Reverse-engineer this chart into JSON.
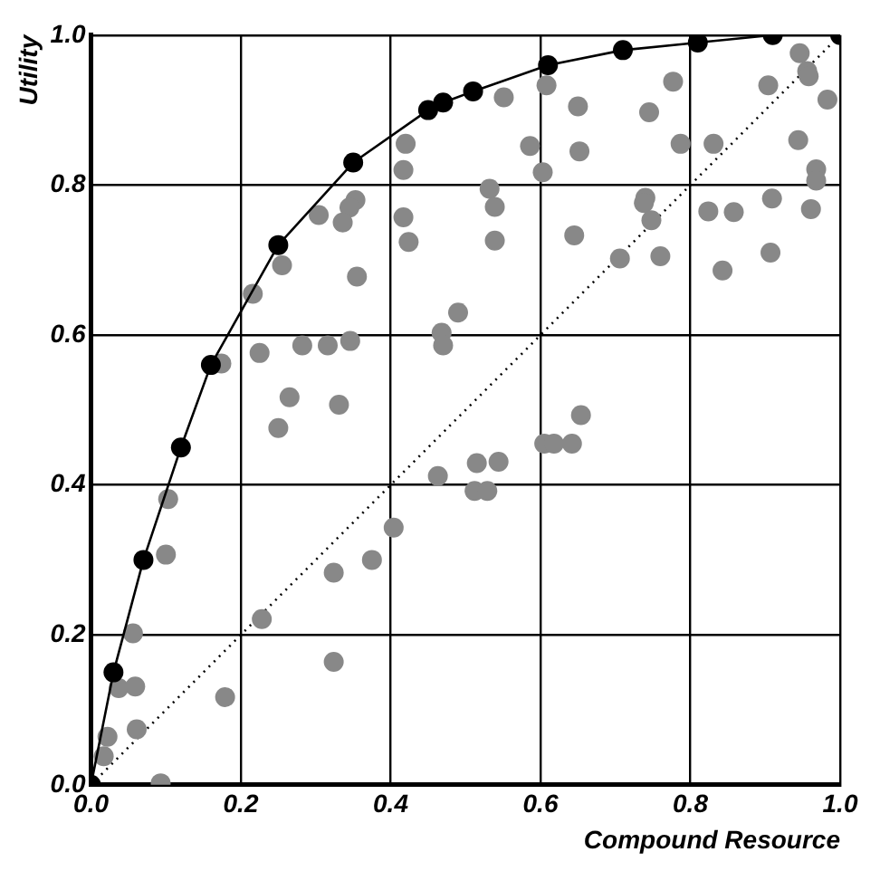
{
  "chart_data": {
    "type": "scatter",
    "xlabel": "Compound Resource",
    "ylabel": "Utility",
    "xlim": [
      0,
      1
    ],
    "ylim": [
      0,
      1
    ],
    "xticks": [
      {
        "value": 0,
        "label": "0.0"
      },
      {
        "value": 0.2,
        "label": "0.2"
      },
      {
        "value": 0.4,
        "label": "0.4"
      },
      {
        "value": 0.6,
        "label": "0.6"
      },
      {
        "value": 0.8,
        "label": "0.8"
      },
      {
        "value": 1,
        "label": "1.0"
      }
    ],
    "yticks": [
      {
        "value": 0,
        "label": "0.0"
      },
      {
        "value": 0.2,
        "label": "0.2"
      },
      {
        "value": 0.4,
        "label": "0.4"
      },
      {
        "value": 0.6,
        "label": "0.6"
      },
      {
        "value": 0.8,
        "label": "0.8"
      },
      {
        "value": 1,
        "label": "1.0"
      }
    ],
    "grid": true,
    "legend": false,
    "series": [
      {
        "type": "scatter",
        "color": "#888888",
        "marker": "circle",
        "x": [
          0.42,
          0.417,
          0.353,
          0.345,
          0.304,
          0.336,
          0.417,
          0.424,
          0.255,
          0.355,
          0.216,
          0.49,
          0.468,
          0.47,
          0.174,
          0.225,
          0.282,
          0.316,
          0.346,
          0.265,
          0.331,
          0.25,
          0.551,
          0.608,
          0.65,
          0.745,
          0.777,
          0.904,
          0.946,
          0.956,
          0.958,
          0.983,
          0.586,
          0.652,
          0.603,
          0.787,
          0.831,
          0.944,
          0.968,
          0.968,
          0.532,
          0.539,
          0.539,
          0.645,
          0.74,
          0.738,
          0.748,
          0.824,
          0.858,
          0.909,
          0.961,
          0.706,
          0.76,
          0.907,
          0.843,
          0.103,
          0.1,
          0.056,
          0.037,
          0.059,
          0.022,
          0.017,
          0.061,
          0.093,
          0.179,
          0.228,
          0.324,
          0.324,
          0.375,
          0.404,
          0.463,
          0.654,
          0.605,
          0.618,
          0.642,
          0.515,
          0.544,
          0.512,
          0.529
        ],
        "values": [
          0.855,
          0.82,
          0.78,
          0.77,
          0.76,
          0.75,
          0.757,
          0.724,
          0.693,
          0.678,
          0.655,
          0.63,
          0.603,
          0.586,
          0.562,
          0.576,
          0.586,
          0.586,
          0.592,
          0.517,
          0.507,
          0.476,
          0.917,
          0.933,
          0.905,
          0.897,
          0.938,
          0.933,
          0.976,
          0.952,
          0.945,
          0.914,
          0.852,
          0.845,
          0.817,
          0.855,
          0.855,
          0.86,
          0.821,
          0.806,
          0.795,
          0.771,
          0.726,
          0.733,
          0.783,
          0.776,
          0.753,
          0.765,
          0.764,
          0.782,
          0.768,
          0.702,
          0.705,
          0.71,
          0.686,
          0.381,
          0.307,
          0.202,
          0.129,
          0.131,
          0.064,
          0.038,
          0.074,
          0.002,
          0.117,
          0.221,
          0.164,
          0.283,
          0.3,
          0.343,
          0.412,
          0.493,
          0.455,
          0.455,
          0.455,
          0.429,
          0.431,
          0.392,
          0.392
        ]
      },
      {
        "type": "line",
        "color": "#000000",
        "marker": "circle",
        "line_style": "solid",
        "x": [
          0,
          0.03,
          0.07,
          0.12,
          0.16,
          0.25,
          0.35,
          0.45,
          0.47,
          0.51,
          0.61,
          0.71,
          0.81,
          0.91,
          1.0
        ],
        "values": [
          0,
          0.15,
          0.3,
          0.45,
          0.56,
          0.72,
          0.83,
          0.9,
          0.91,
          0.925,
          0.96,
          0.98,
          0.99,
          1.0,
          1.0
        ]
      },
      {
        "type": "line",
        "color": "#000000",
        "marker": "none",
        "line_style": "dotted",
        "x": [
          0,
          1
        ],
        "values": [
          0,
          1
        ]
      }
    ]
  }
}
